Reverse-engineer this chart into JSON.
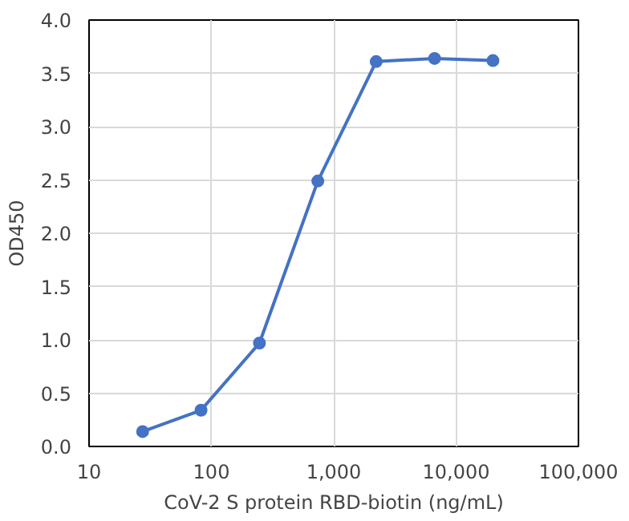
{
  "chart_data": {
    "type": "line",
    "xlabel": "CoV-2 S protein RBD-biotin (ng/mL)",
    "ylabel": "OD450",
    "x": [
      27.4,
      82.3,
      247,
      741,
      2222,
      6667,
      20000
    ],
    "series": [
      {
        "color": "#4472c4",
        "values": [
          0.14,
          0.34,
          0.97,
          2.49,
          3.61,
          3.64,
          3.62
        ]
      }
    ],
    "log": "x",
    "xlim": [
      10,
      100000
    ],
    "xticks": [
      10,
      100,
      {
        "value": 1000,
        "label": "1,000"
      },
      {
        "value": 10000,
        "label": "10,000"
      },
      {
        "value": 100000,
        "label": "100,000"
      }
    ],
    "ylim": [
      0,
      4
    ],
    "yticks": [
      {
        "value": 0,
        "label": "0.0"
      },
      0.5,
      {
        "value": 1,
        "label": "1.0"
      },
      1.5,
      {
        "value": 2,
        "label": "2.0"
      },
      2.5,
      {
        "value": 3,
        "label": "3.0"
      },
      3.5,
      {
        "value": 4,
        "label": "4.0"
      }
    ],
    "grid": true,
    "marker": "circle"
  }
}
